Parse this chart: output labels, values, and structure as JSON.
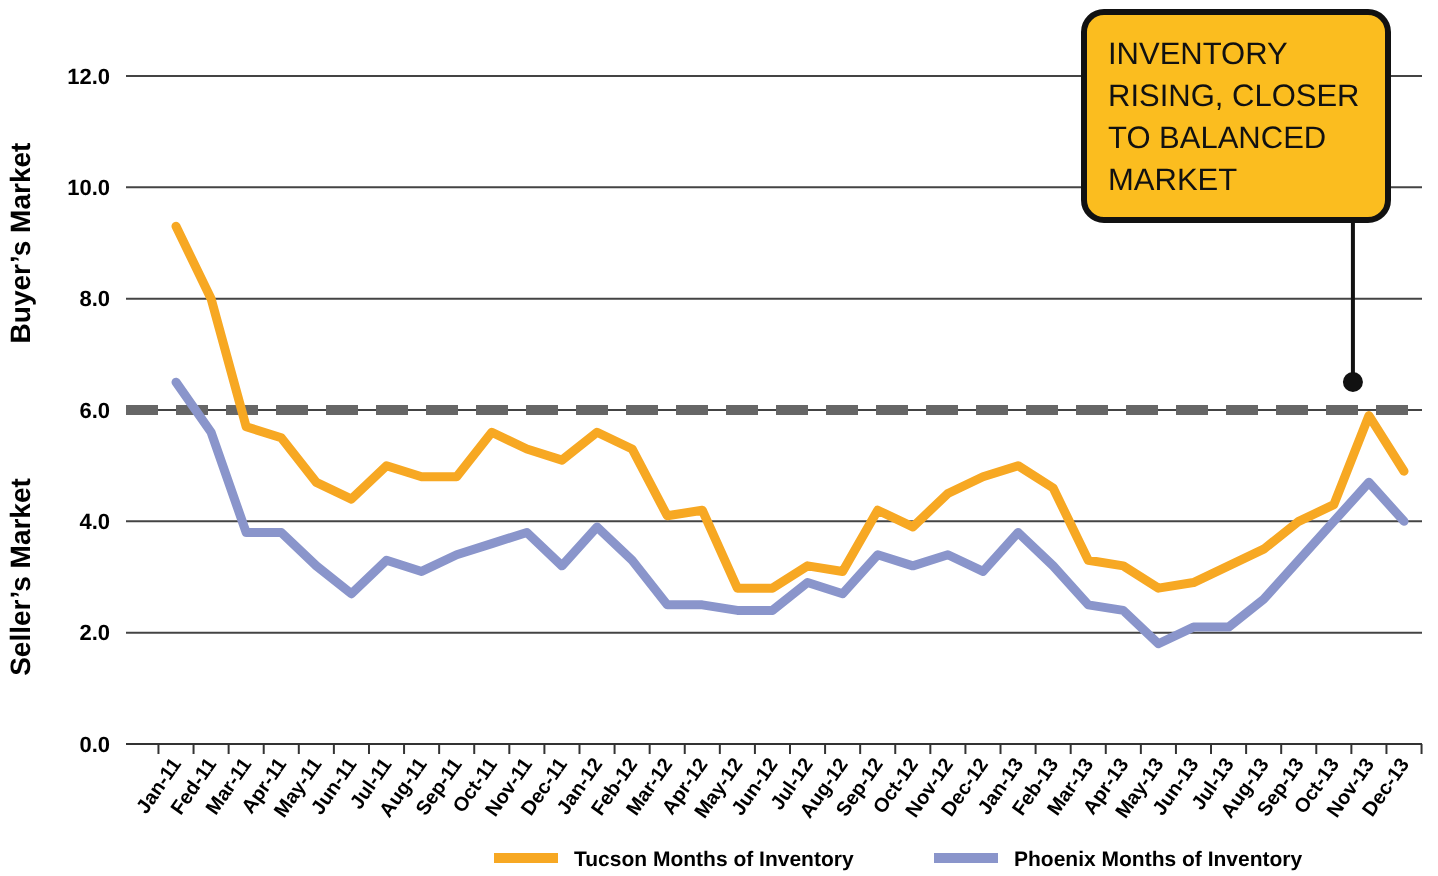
{
  "chart_data": {
    "type": "line",
    "ylabel": "Buyer’s Market",
    "categories": [
      "Jan-11",
      "Fed-11",
      "Mar-11",
      "Apr-11",
      "May-11",
      "Jun-11",
      "Jul-11",
      "Aug-11",
      "Sep-11",
      "Oct-11",
      "Nov-11",
      "Dec-11",
      "Jan-12",
      "Feb-12",
      "Mar-12",
      "Apr-12",
      "May-12",
      "Jun-12",
      "Jul-12",
      "Aug-12",
      "Sep-12",
      "Oct-12",
      "Nov-12",
      "Dec-12",
      "Jan-13",
      "Feb-13",
      "Mar-13",
      "Apr-13",
      "May-13",
      "Jun-13",
      "Jul-13",
      "Aug-13",
      "Sep-13",
      "Oct-13",
      "Nov-13",
      "Dec-13"
    ],
    "series": [
      {
        "name": "Tucson Months of Inventory",
        "color": "#f7a823",
        "values": [
          9.3,
          8.0,
          5.7,
          5.5,
          4.7,
          4.4,
          5.0,
          4.8,
          4.8,
          5.6,
          5.3,
          5.1,
          5.6,
          5.3,
          4.1,
          4.2,
          2.8,
          2.8,
          3.2,
          3.1,
          4.2,
          3.9,
          4.5,
          4.8,
          5.0,
          4.6,
          3.3,
          3.2,
          2.8,
          2.9,
          3.2,
          3.5,
          4.0,
          4.3,
          5.9,
          4.9
        ]
      },
      {
        "name": "Phoenix Months of Inventory",
        "color": "#8a95cb",
        "values": [
          6.5,
          5.6,
          3.8,
          3.8,
          3.2,
          2.7,
          3.3,
          3.1,
          3.4,
          3.6,
          3.8,
          3.2,
          3.9,
          3.3,
          2.5,
          2.5,
          2.4,
          2.4,
          2.9,
          2.7,
          3.4,
          3.2,
          3.4,
          3.1,
          3.8,
          3.2,
          2.5,
          2.4,
          1.8,
          2.1,
          2.1,
          2.6,
          3.3,
          4.0,
          4.7,
          4.0
        ]
      }
    ],
    "ylim": [
      0,
      12
    ],
    "yticks": [
      {
        "value": 0,
        "label": "0.0"
      },
      {
        "value": 2,
        "label": "2.0"
      },
      {
        "value": 4,
        "label": "4.0"
      },
      {
        "value": 6,
        "label": "6.0"
      },
      {
        "value": 8,
        "label": "8.0"
      },
      {
        "value": 10,
        "label": "10.0"
      },
      {
        "value": 12,
        "label": "12.0"
      }
    ],
    "grid": "y",
    "legend": "bottom",
    "marker": "none",
    "line_style": "solid",
    "ref_lines": [
      {
        "axis": "y",
        "value": 6,
        "color": "#666666",
        "line_style": "dashed"
      }
    ],
    "annotations": [
      "Seller’s Market",
      "INVENTORY RISING, CLOSER TO BALANCED MARKET"
    ]
  }
}
